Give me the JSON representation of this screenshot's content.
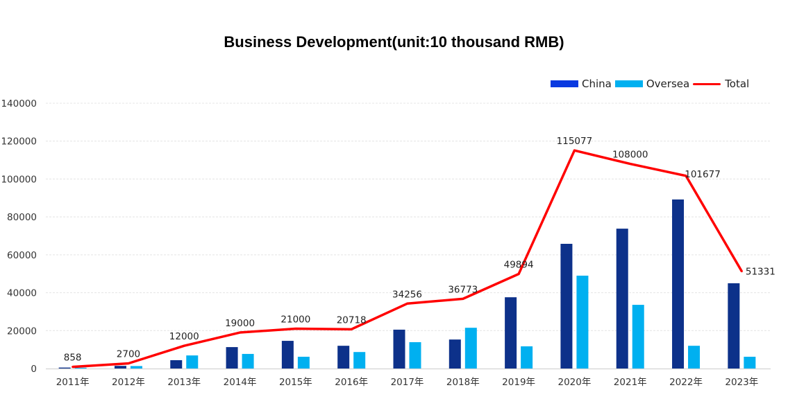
{
  "chart_data": {
    "type": "bar",
    "title": "Business Development(unit:10 thousand RMB)",
    "xlabel": "",
    "ylabel": "",
    "ylim": [
      0,
      140000
    ],
    "yticks": [
      0,
      20000,
      40000,
      60000,
      80000,
      100000,
      120000,
      140000
    ],
    "grid": true,
    "legend_position": "top-right",
    "categories": [
      "2011年",
      "2012年",
      "2013年",
      "2014年",
      "2015年",
      "2016年",
      "2017年",
      "2018年",
      "2019年",
      "2020年",
      "2021年",
      "2022年",
      "2023年"
    ],
    "series": [
      {
        "name": "China",
        "type": "bar",
        "color": "#0d318a",
        "legend_color": "#0a3ae0",
        "values": [
          500,
          1400,
          4400,
          11300,
          14600,
          12000,
          20500,
          15300,
          37600,
          65800,
          73800,
          89200,
          45000
        ]
      },
      {
        "name": "Oversea",
        "type": "bar",
        "color": "#00b0f0",
        "values": [
          400,
          1300,
          6900,
          7700,
          6200,
          8700,
          13900,
          21500,
          11700,
          49000,
          33600,
          12000,
          6200
        ]
      },
      {
        "name": "Total",
        "type": "line",
        "color": "#ff0000",
        "values": [
          858,
          2700,
          12000,
          19000,
          21000,
          20718,
          34256,
          36773,
          49894,
          115077,
          108000,
          101677,
          51331
        ],
        "labels": [
          "858",
          "2700",
          "12000",
          "19000",
          "21000",
          "20718",
          "34256",
          "36773",
          "49894",
          "115077",
          "108000",
          "101677",
          "51331"
        ]
      }
    ]
  }
}
